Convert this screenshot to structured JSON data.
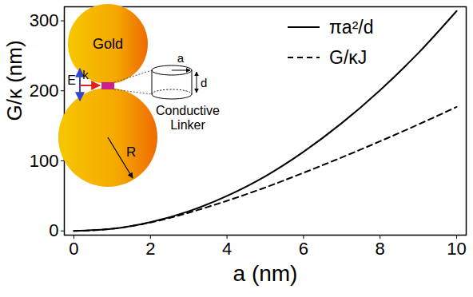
{
  "chart_data": {
    "type": "line",
    "x_label": "a (nm)",
    "y_label": "G/κ (nm)",
    "xlim": [
      -0.25,
      10.25
    ],
    "ylim": [
      -6,
      320
    ],
    "xticks": [
      0,
      2,
      4,
      6,
      8,
      10
    ],
    "yticks": [
      0,
      100,
      200,
      300
    ],
    "grid": false,
    "legend": "top-right",
    "x": [
      0,
      1,
      2,
      3,
      4,
      5,
      6,
      7,
      8,
      9,
      10
    ],
    "series": [
      {
        "name": "πa²/d",
        "color": "#000000",
        "line_style": "solid",
        "values": [
          0,
          3,
          12.5,
          28,
          50,
          78,
          113,
          154,
          201,
          254,
          314
        ]
      },
      {
        "name": "G/κJ",
        "color": "#000000",
        "line_style": "dashed",
        "values": [
          0,
          3,
          12,
          26,
          43,
          62,
          83,
          105,
          128,
          152,
          177
        ]
      }
    ],
    "annotations": [
      "Gold",
      "E",
      "k",
      "a",
      "d",
      "Conductive Linker",
      "R"
    ]
  }
}
